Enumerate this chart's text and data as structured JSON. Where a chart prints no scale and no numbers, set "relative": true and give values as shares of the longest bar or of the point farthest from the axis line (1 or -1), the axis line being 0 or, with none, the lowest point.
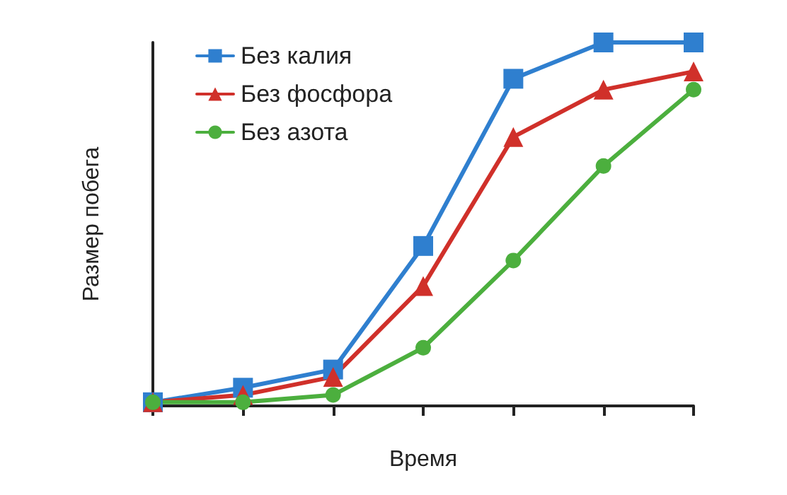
{
  "chart_data": {
    "type": "line",
    "relative": true,
    "xlabel": "Время",
    "ylabel": "Размер побега",
    "categories": [
      null,
      null,
      null,
      null,
      null,
      null,
      null
    ],
    "legend": "top left",
    "grid": false,
    "line_style": "solid",
    "series": [
      {
        "name": "Без калия",
        "color": "#2f7fcf",
        "marker": "square",
        "values": [
          0.01,
          0.05,
          0.1,
          0.44,
          0.9,
          1,
          1
        ]
      },
      {
        "name": "Без фосфора",
        "color": "#d0302a",
        "marker": "triangle",
        "values": [
          0.01,
          0.03,
          0.08,
          0.33,
          0.74,
          0.87,
          0.92
        ]
      },
      {
        "name": "Без азота",
        "color": "#4caf3e",
        "marker": "circle",
        "values": [
          0.01,
          0.01,
          0.03,
          0.16,
          0.4,
          0.66,
          0.87
        ]
      }
    ]
  }
}
